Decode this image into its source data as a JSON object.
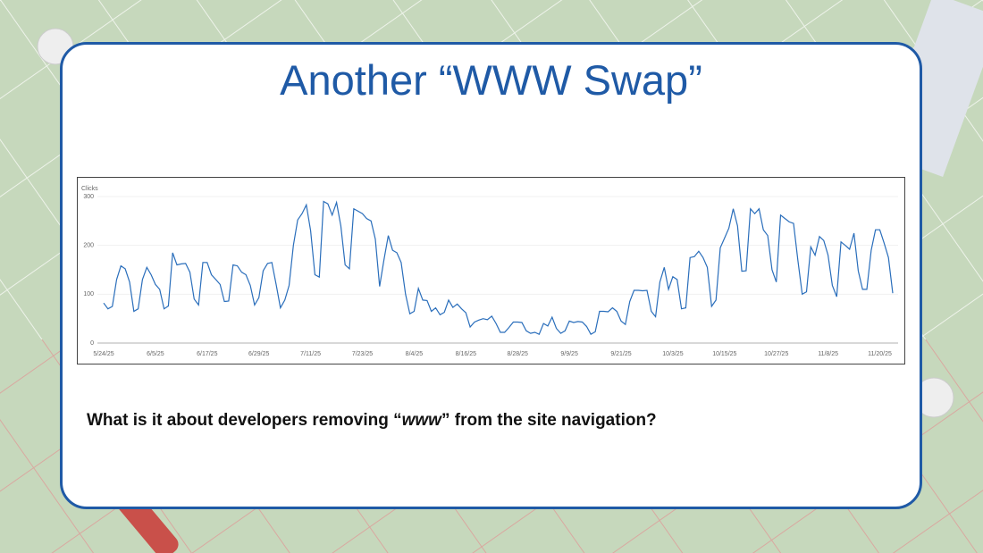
{
  "slide": {
    "title": "Another “WWW Swap”",
    "question": [
      "What is it about developers removing “",
      "www",
      "” from the site navigation?"
    ]
  },
  "chart_data": {
    "type": "line",
    "y_label": "Clicks",
    "color": "#2a6ebb",
    "grid": true,
    "ylim": [
      0,
      300
    ],
    "yticks": [
      0,
      100,
      200,
      300
    ],
    "categories": [
      "5/24/25",
      null,
      null,
      null,
      null,
      null,
      null,
      null,
      null,
      null,
      null,
      null,
      "6/5/25",
      null,
      null,
      null,
      null,
      null,
      null,
      null,
      null,
      null,
      null,
      null,
      "6/17/25",
      null,
      null,
      null,
      null,
      null,
      null,
      null,
      null,
      null,
      null,
      null,
      "6/29/25",
      null,
      null,
      null,
      null,
      null,
      null,
      null,
      null,
      null,
      null,
      null,
      "7/11/25",
      null,
      null,
      null,
      null,
      null,
      null,
      null,
      null,
      null,
      null,
      null,
      "7/23/25",
      null,
      null,
      null,
      null,
      null,
      null,
      null,
      null,
      null,
      null,
      null,
      "8/4/25",
      null,
      null,
      null,
      null,
      null,
      null,
      null,
      null,
      null,
      null,
      null,
      "8/16/25",
      null,
      null,
      null,
      null,
      null,
      null,
      null,
      null,
      null,
      null,
      null,
      "8/28/25",
      null,
      null,
      null,
      null,
      null,
      null,
      null,
      null,
      null,
      null,
      null,
      "9/9/25",
      null,
      null,
      null,
      null,
      null,
      null,
      null,
      null,
      null,
      null,
      null,
      "9/21/25",
      null,
      null,
      null,
      null,
      null,
      null,
      null,
      null,
      null,
      null,
      null,
      "10/3/25",
      null,
      null,
      null,
      null,
      null,
      null,
      null,
      null,
      null,
      null,
      null,
      "10/15/25",
      null,
      null,
      null,
      null,
      null,
      null,
      null,
      null,
      null,
      null,
      null,
      "10/27/25",
      null,
      null,
      null,
      null,
      null,
      null,
      null,
      null,
      null,
      null,
      null,
      "11/8/25",
      null,
      null,
      null,
      null,
      null,
      null,
      null,
      null,
      null,
      null,
      null,
      "11/20/25",
      null,
      null,
      null
    ],
    "values": [
      82,
      70,
      75,
      130,
      158,
      152,
      125,
      65,
      70,
      130,
      155,
      140,
      120,
      110,
      70,
      76,
      185,
      160,
      162,
      163,
      145,
      90,
      78,
      165,
      165,
      140,
      130,
      120,
      85,
      86,
      160,
      158,
      145,
      140,
      118,
      78,
      93,
      148,
      163,
      165,
      120,
      72,
      88,
      118,
      200,
      252,
      265,
      283,
      230,
      140,
      135,
      290,
      285,
      262,
      288,
      240,
      160,
      152,
      275,
      270,
      265,
      255,
      250,
      213,
      116,
      170,
      220,
      190,
      185,
      165,
      100,
      60,
      65,
      112,
      88,
      87,
      65,
      72,
      58,
      63,
      88,
      73,
      80,
      70,
      62,
      33,
      43,
      47,
      50,
      48,
      55,
      40,
      22,
      22,
      32,
      43,
      43,
      42,
      25,
      20,
      22,
      18,
      40,
      35,
      53,
      30,
      20,
      25,
      45,
      42,
      44,
      43,
      34,
      18,
      23,
      65,
      65,
      64,
      72,
      65,
      45,
      38,
      85,
      108,
      108,
      107,
      108,
      65,
      54,
      125,
      155,
      110,
      136,
      130,
      70,
      72,
      175,
      177,
      188,
      175,
      155,
      75,
      88,
      195,
      215,
      235,
      275,
      240,
      147,
      148,
      275,
      265,
      275,
      232,
      220,
      150,
      125,
      262,
      255,
      248,
      245,
      170,
      100,
      105,
      197,
      180,
      218,
      210,
      180,
      118,
      95,
      207,
      200,
      192,
      225,
      148,
      110,
      110,
      190,
      232,
      232,
      205,
      175,
      102
    ]
  }
}
